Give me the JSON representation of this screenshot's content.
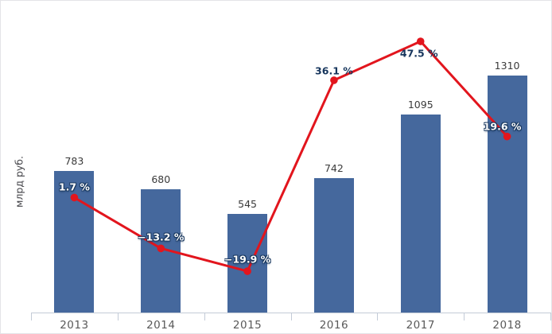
{
  "chart": {
    "colors": {
      "bar": "#45689d",
      "line": "#e2151d",
      "percent_label_on_bar_text": "#ffffff",
      "percent_label_halo": "#17365d",
      "percent_label_on_white_text": "#17365d",
      "value_label": "#3a3a3a",
      "axis": "#c3cbd7",
      "x_tick_label": "#595959",
      "y_axis_title": "#434348",
      "background": "#ffffff",
      "frame_border": "#e4e4e7"
    }
  },
  "chart_data": {
    "type": "bar+line",
    "categories": [
      "2013",
      "2014",
      "2015",
      "2016",
      "2017",
      "2018"
    ],
    "series": [
      {
        "type": "bar",
        "values": [
          783,
          680,
          545,
          742,
          1095,
          1310
        ],
        "labels": [
          "783",
          "680",
          "545",
          "742",
          "1095",
          "1310"
        ],
        "color": "#45689d"
      },
      {
        "type": "line",
        "values": [
          1.7,
          -13.2,
          -19.9,
          36.1,
          47.5,
          19.6
        ],
        "labels": [
          "1.7 %",
          "−13.2 %",
          "−19.9 %",
          "36.1 %",
          "47.5 %",
          "19.6 %"
        ],
        "color": "#e2151d"
      }
    ],
    "xlabel": "",
    "ylabel": "млрд руб.",
    "ylim": [
      0,
      1400
    ],
    "grid": false,
    "legend": "none"
  }
}
